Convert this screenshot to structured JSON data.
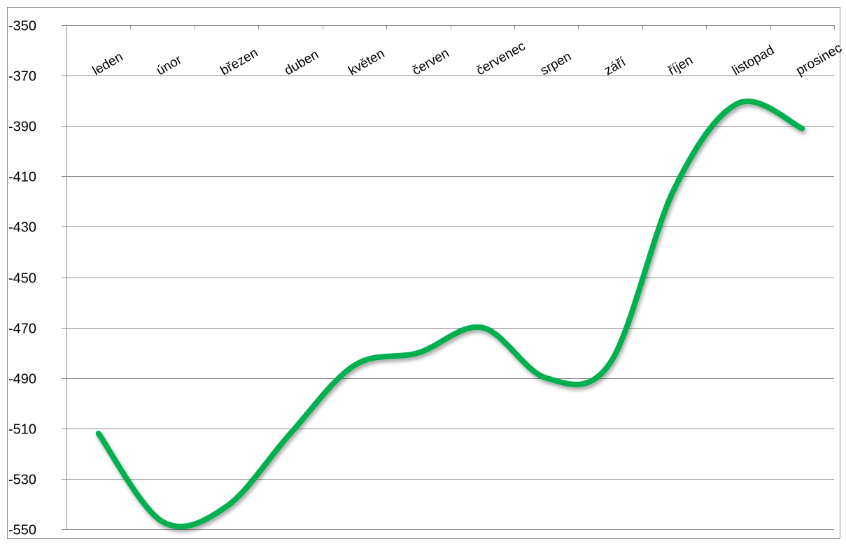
{
  "chart_data": {
    "type": "line",
    "title": "",
    "xlabel": "",
    "ylabel": "",
    "categories": [
      "leden",
      "únor",
      "březen",
      "duben",
      "květen",
      "červen",
      "červenec",
      "srpen",
      "září",
      "říjen",
      "listopad",
      "prosinec"
    ],
    "series": [
      {
        "values": [
          -512,
          -547,
          -541,
          -512,
          -485,
          -480,
          -470,
          -490,
          -484,
          -415,
          -381,
          -391
        ]
      }
    ],
    "ylim": [
      -550,
      -350
    ],
    "yticks": [
      -350,
      -370,
      -390,
      -410,
      -430,
      -450,
      -470,
      -490,
      -510,
      -530,
      -550
    ],
    "ytick_labels": [
      "-350",
      "-370",
      "-390",
      "-410",
      "-430",
      "-450",
      "-470",
      "-490",
      "-510",
      "-530",
      "-550"
    ],
    "grid": true,
    "legend": "none",
    "colors": {
      "line": "#00b050",
      "grid": "#8c8c8c",
      "border": "#8c8c8c"
    },
    "smooth": true
  }
}
